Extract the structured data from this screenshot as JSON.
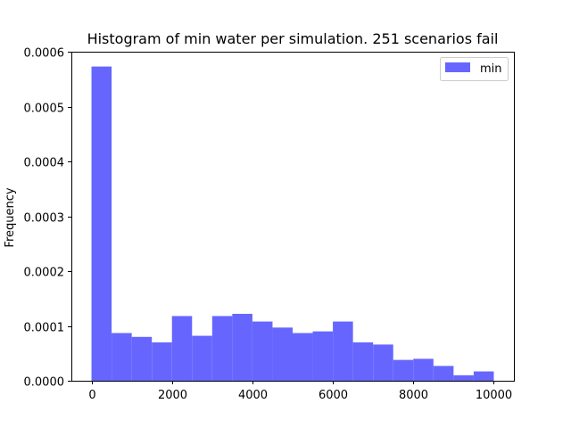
{
  "chart_data": {
    "type": "bar",
    "title": "Histogram of min water per simulation.  251 scenarios fail",
    "xlabel": "",
    "ylabel": "Frequency",
    "xlim": [
      -500,
      10500
    ],
    "ylim": [
      0,
      0.0006
    ],
    "x_ticks": [
      0,
      2000,
      4000,
      6000,
      8000,
      10000
    ],
    "x_tick_labels": [
      "0",
      "2000",
      "4000",
      "6000",
      "8000",
      "10000"
    ],
    "y_ticks": [
      0,
      0.0001,
      0.0002,
      0.0003,
      0.0004,
      0.0005,
      0.0006
    ],
    "y_tick_labels": [
      "0.0000",
      "0.0001",
      "0.0002",
      "0.0003",
      "0.0004",
      "0.0005",
      "0.0006"
    ],
    "grid": false,
    "legend_position": "top-right",
    "bin_edges": [
      0,
      500,
      1000,
      1500,
      2000,
      2500,
      3000,
      3500,
      4000,
      4500,
      5000,
      5500,
      6000,
      6500,
      7000,
      7500,
      8000,
      8500,
      9000,
      9500,
      10000
    ],
    "series": [
      {
        "name": "min",
        "color": "#6666ff",
        "values": [
          0.000573,
          8.7e-05,
          8e-05,
          7e-05,
          0.000118,
          8.2e-05,
          0.000118,
          0.000122,
          0.000108,
          9.7e-05,
          8.7e-05,
          9e-05,
          0.000108,
          7e-05,
          6.6e-05,
          3.8e-05,
          4e-05,
          2.7e-05,
          1e-05,
          1.7e-05
        ]
      }
    ]
  }
}
